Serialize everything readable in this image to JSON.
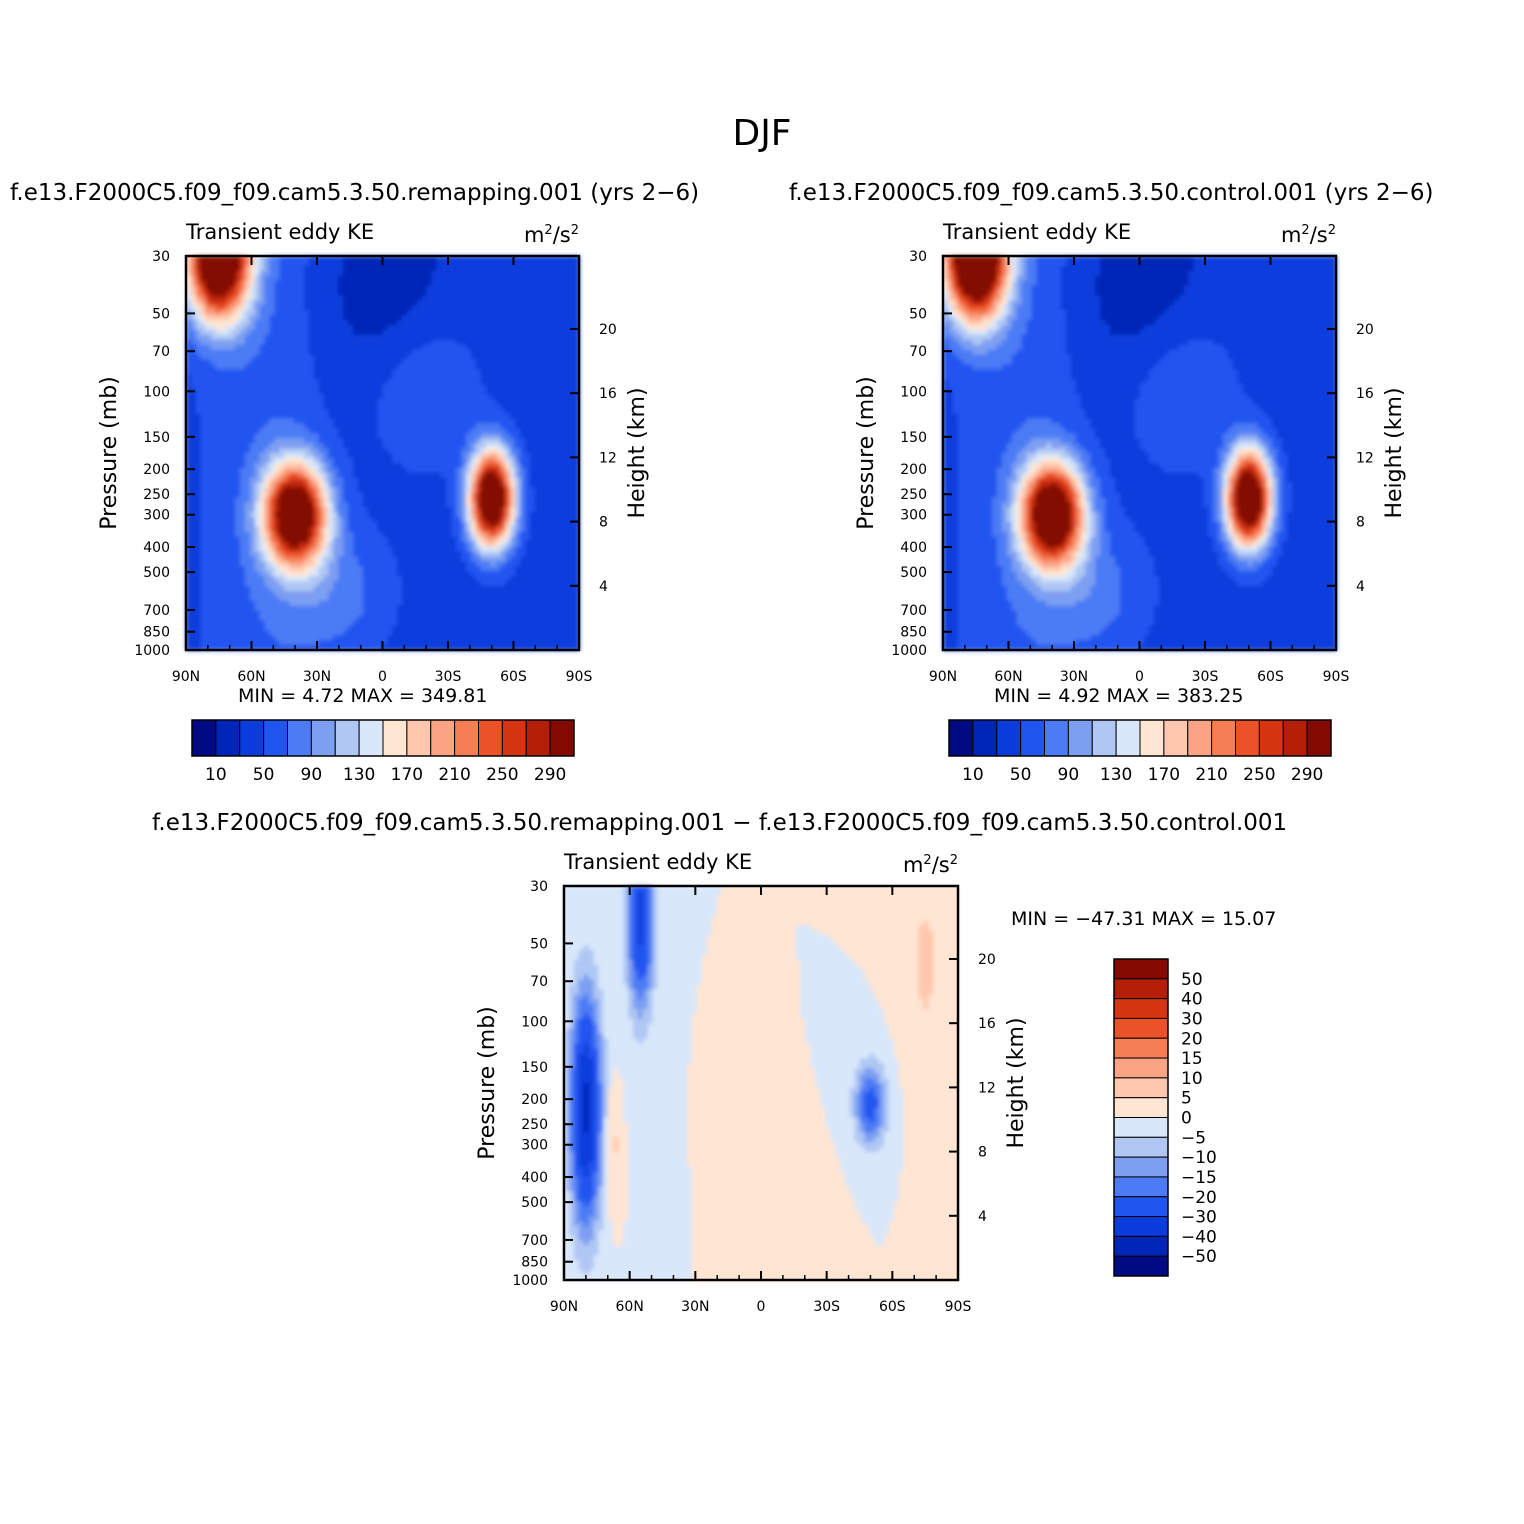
{
  "figure": {
    "season_title": "DJF",
    "diff_title": "f.e13.F2000C5.f09_f09.cam5.3.50.remapping.001 − f.e13.F2000C5.f09_f09.cam5.3.50.control.001"
  },
  "panels": [
    {
      "case_title": "f.e13.F2000C5.f09_f09.cam5.3.50.remapping.001 (yrs 2−6)",
      "left_label": "Transient eddy KE",
      "units_html": "m<tspan baseline-shift=\"super\" font-size=\"13\">2</tspan>/s<tspan baseline-shift=\"super\" font-size=\"13\">2</tspan>",
      "units": "m2/s2",
      "stats": "MIN =    4.72   MAX = 349.81"
    },
    {
      "case_title": "f.e13.F2000C5.f09_f09.cam5.3.50.control.001 (yrs 2−6)",
      "left_label": "Transient eddy KE",
      "units": "m2/s2",
      "stats": "MIN =    4.92   MAX = 383.25"
    },
    {
      "left_label": "Transient eddy KE",
      "units": "m2/s2",
      "stats": "MIN = −47.31   MAX =   15.07"
    }
  ],
  "chart_data": [
    {
      "type": "heatmap",
      "title": "f.e13.F2000C5.f09_f09.cam5.3.50.remapping.001 (yrs 2−6)",
      "subtitle_left": "Transient eddy KE",
      "units": "m2/s2",
      "xlabel": "",
      "ylabel": "Pressure (mb)",
      "ylabel_right": "Height (km)",
      "x_ticks": [
        "90N",
        "60N",
        "30N",
        "0",
        "30S",
        "60S",
        "90S"
      ],
      "y_ticks": [
        "30",
        "50",
        "70",
        "100",
        "150",
        "200",
        "250",
        "300",
        "400",
        "500",
        "700",
        "850",
        "1000"
      ],
      "y_right_ticks": [
        "4",
        "8",
        "12",
        "16",
        "20"
      ],
      "y_scale": "log",
      "min": 4.72,
      "max": 349.81,
      "colorbar_levels": [
        "10",
        "50",
        "90",
        "130",
        "170",
        "210",
        "250",
        "290"
      ],
      "colors": [
        "#000a82",
        "#0026b8",
        "#0a3ddc",
        "#2155f0",
        "#4c7bf5",
        "#7d9ff2",
        "#b0c7f4",
        "#d8e7fa",
        "#ffe5d2",
        "#ffc8ae",
        "#fba385",
        "#f57e55",
        "#ec5228",
        "#d63512",
        "#b42007",
        "#820a00"
      ],
      "features": [
        {
          "lat": 75,
          "p": 30,
          "value": 340
        },
        {
          "lat": 40,
          "p": 300,
          "value": 330
        },
        {
          "lat": -50,
          "p": 260,
          "value": 345
        },
        {
          "lat": 0,
          "p": 40,
          "value": 10
        }
      ]
    },
    {
      "type": "heatmap",
      "title": "f.e13.F2000C5.f09_f09.cam5.3.50.control.001 (yrs 2−6)",
      "subtitle_left": "Transient eddy KE",
      "units": "m2/s2",
      "xlabel": "",
      "ylabel": "Pressure (mb)",
      "ylabel_right": "Height (km)",
      "x_ticks": [
        "90N",
        "60N",
        "30N",
        "0",
        "30S",
        "60S",
        "90S"
      ],
      "y_ticks": [
        "30",
        "50",
        "70",
        "100",
        "150",
        "200",
        "250",
        "300",
        "400",
        "500",
        "700",
        "850",
        "1000"
      ],
      "y_right_ticks": [
        "4",
        "8",
        "12",
        "16",
        "20"
      ],
      "y_scale": "log",
      "min": 4.92,
      "max": 383.25,
      "colorbar_levels": [
        "10",
        "50",
        "90",
        "130",
        "170",
        "210",
        "250",
        "290"
      ],
      "colors": [
        "#000a82",
        "#0026b8",
        "#0a3ddc",
        "#2155f0",
        "#4c7bf5",
        "#7d9ff2",
        "#b0c7f4",
        "#d8e7fa",
        "#ffe5d2",
        "#ffc8ae",
        "#fba385",
        "#f57e55",
        "#ec5228",
        "#d63512",
        "#b42007",
        "#820a00"
      ],
      "features": [
        {
          "lat": 75,
          "p": 30,
          "value": 375
        },
        {
          "lat": 40,
          "p": 300,
          "value": 335
        },
        {
          "lat": -50,
          "p": 260,
          "value": 350
        },
        {
          "lat": 0,
          "p": 40,
          "value": 20
        }
      ]
    },
    {
      "type": "heatmap",
      "title": "f.e13.F2000C5.f09_f09.cam5.3.50.remapping.001 − f.e13.F2000C5.f09_f09.cam5.3.50.control.001",
      "subtitle_left": "Transient eddy KE",
      "units": "m2/s2",
      "xlabel": "",
      "ylabel": "Pressure (mb)",
      "ylabel_right": "Height (km)",
      "x_ticks": [
        "90N",
        "60N",
        "30N",
        "0",
        "30S",
        "60S",
        "90S"
      ],
      "y_ticks": [
        "30",
        "50",
        "70",
        "100",
        "150",
        "200",
        "250",
        "300",
        "400",
        "500",
        "700",
        "850",
        "1000"
      ],
      "y_right_ticks": [
        "4",
        "8",
        "12",
        "16",
        "20"
      ],
      "y_scale": "log",
      "min": -47.31,
      "max": 15.07,
      "colorbar_levels": [
        "−50",
        "−40",
        "−30",
        "−20",
        "−15",
        "−10",
        "−5",
        "0",
        "5",
        "10",
        "15",
        "20",
        "30",
        "40",
        "50"
      ],
      "colors": [
        "#000a82",
        "#0026b8",
        "#0a3ddc",
        "#2155f0",
        "#4c7bf5",
        "#7d9ff2",
        "#b0c7f4",
        "#d8e7fa",
        "#ffe5d2",
        "#ffc8ae",
        "#fba385",
        "#f57e55",
        "#ec5228",
        "#d63512",
        "#b42007",
        "#820a00"
      ],
      "features": [
        {
          "lat": 80,
          "p": 220,
          "value": -45
        },
        {
          "lat": 55,
          "p": 40,
          "value": -35
        },
        {
          "lat": -48,
          "p": 220,
          "value": -28
        },
        {
          "lat": -75,
          "p": 60,
          "value": 6
        },
        {
          "lat": 0,
          "p": 250,
          "value": 0
        }
      ]
    }
  ]
}
